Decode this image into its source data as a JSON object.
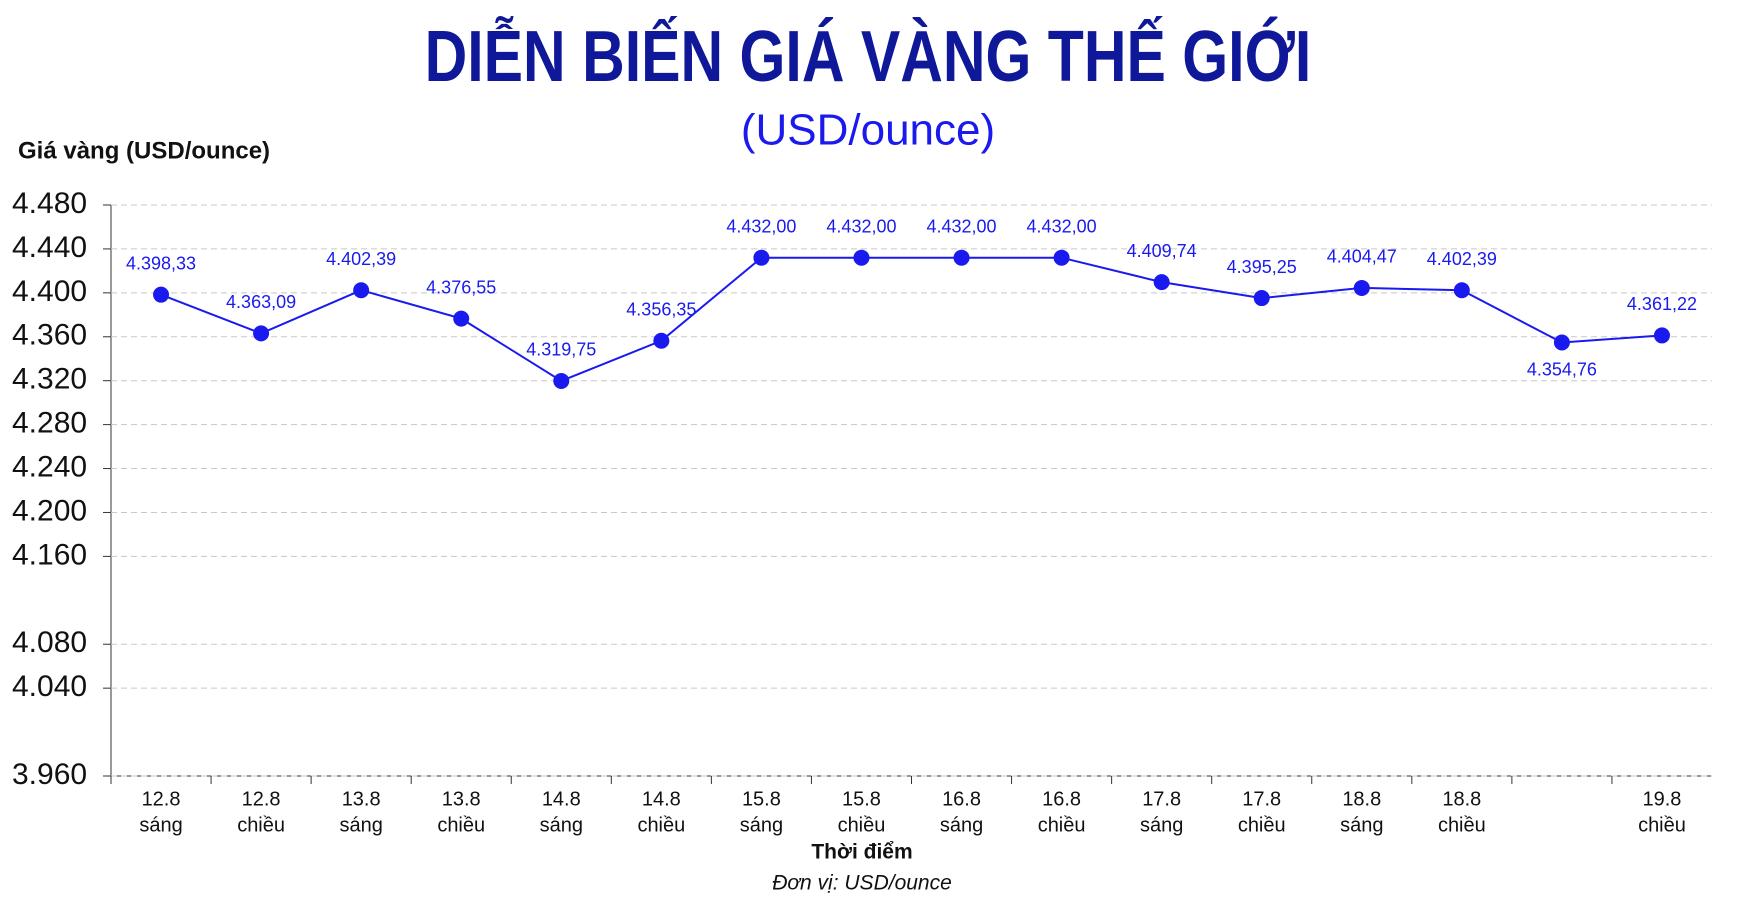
{
  "chart_data": {
    "type": "line",
    "title": "DIỄN BIẾN GIÁ VÀNG THẾ GIỚI",
    "subtitle": "(USD/ounce)",
    "y_label": "Giá vàng (USD/ounce)",
    "x_label": "Thời điểm",
    "note": "Đơn vị: USD/ounce",
    "categories": [
      [
        "12.8",
        "sáng"
      ],
      [
        "12.8",
        "chiều"
      ],
      [
        "13.8",
        "sáng"
      ],
      [
        "13.8",
        "chiều"
      ],
      [
        "14.8",
        "sáng"
      ],
      [
        "14.8",
        "chiều"
      ],
      [
        "15.8",
        "sáng"
      ],
      [
        "15.8",
        "chiều"
      ],
      [
        "16.8",
        "sáng"
      ],
      [
        "16.8",
        "chiều"
      ],
      [
        "17.8",
        "sáng"
      ],
      [
        "17.8",
        "chiều"
      ],
      [
        "18.8",
        "sáng"
      ],
      [
        "18.8",
        "chiều"
      ],
      null,
      [
        "19.8",
        "chiều"
      ]
    ],
    "series": [
      {
        "color": "#1a1aee",
        "values": [
          4398.33,
          4363.09,
          4402.39,
          4376.55,
          4319.75,
          4356.35,
          4432.0,
          4432.0,
          4432.0,
          4432.0,
          4409.74,
          4395.25,
          4404.47,
          4402.39,
          4354.76,
          4361.22
        ],
        "value_labels": [
          "4.398,33",
          "4.363,09",
          "4.402,39",
          "4.376,55",
          "4.319,75",
          "4.356,35",
          "4.432,00",
          "4.432,00",
          "4.432,00",
          "4.432,00",
          "4.409,74",
          "4.395,25",
          "4.404,47",
          "4.402,39",
          "4.354,76",
          "4.361,22"
        ]
      }
    ],
    "ylim": [
      3960,
      4480
    ],
    "yticks": [
      {
        "value": 4480,
        "label": "4.480"
      },
      {
        "value": 4440,
        "label": "4.440"
      },
      {
        "value": 4400,
        "label": "4.400"
      },
      {
        "value": 4360,
        "label": "4.360"
      },
      {
        "value": 4320,
        "label": "4.320"
      },
      {
        "value": 4280,
        "label": "4.280"
      },
      {
        "value": 4240,
        "label": "4.240"
      },
      {
        "value": 4200,
        "label": "4.200"
      },
      {
        "value": 4160,
        "label": "4.160"
      },
      {
        "value": 4080,
        "label": "4.080"
      },
      {
        "value": 4040,
        "label": "4.040"
      },
      {
        "value": 3960,
        "label": "3.960"
      }
    ],
    "grid": true
  }
}
